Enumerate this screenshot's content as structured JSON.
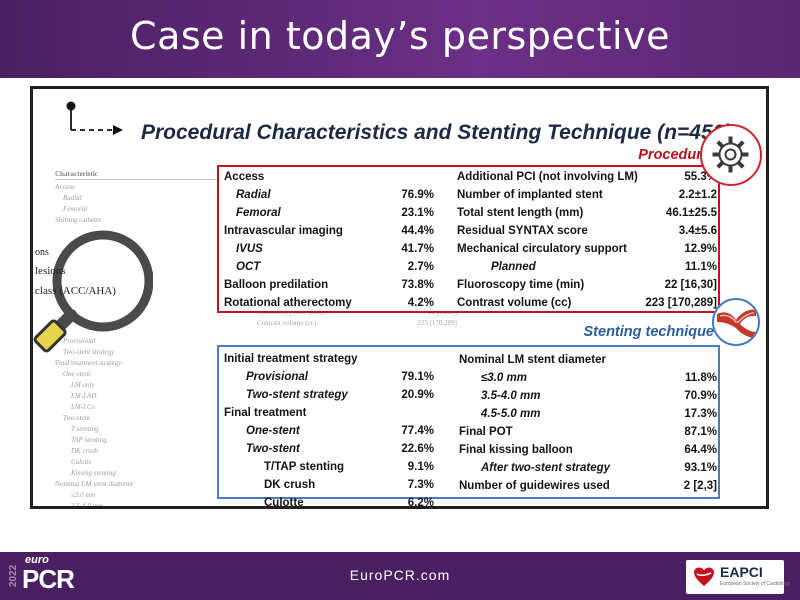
{
  "header": {
    "title": "Case in today’s perspective"
  },
  "heading": "Procedural Characteristics and Stenting Technique (n=450)",
  "labels": {
    "procedural": "Procedural",
    "stenting": "Stenting technique"
  },
  "procedural_left": [
    {
      "label": "Access",
      "value": "",
      "style": "h"
    },
    {
      "label": "Radial",
      "value": "76.9%",
      "style": "i1"
    },
    {
      "label": "Femoral",
      "value": "23.1%",
      "style": "i1"
    },
    {
      "label": "Intravascular imaging",
      "value": "44.4%",
      "style": "h"
    },
    {
      "label": "IVUS",
      "value": "41.7%",
      "style": "i1"
    },
    {
      "label": "OCT",
      "value": "2.7%",
      "style": "i1"
    },
    {
      "label": "Balloon predilation",
      "value": "73.8%",
      "style": "h"
    },
    {
      "label": "Rotational atherectomy",
      "value": "4.2%",
      "style": "h"
    }
  ],
  "procedural_right": [
    {
      "label": "Additional PCI (not involving LM)",
      "value": "55.3%",
      "style": "h"
    },
    {
      "label": "Number of implanted stent",
      "value": "2.2±1.2",
      "style": "h"
    },
    {
      "label": "Total stent length (mm)",
      "value": "46.1±25.5",
      "style": "h"
    },
    {
      "label": "Residual SYNTAX score",
      "value": "3.4±5.6",
      "style": "h"
    },
    {
      "label": "Mechanical circulatory support",
      "value": "12.9%",
      "style": "h"
    },
    {
      "label": "Planned",
      "value": "11.1%",
      "style": "i3"
    },
    {
      "label": "Fluoroscopy time (min)",
      "value": "22 [16,30]",
      "style": "h"
    },
    {
      "label": "Contrast volume (cc)",
      "value": "223 [170,289]",
      "style": "h"
    }
  ],
  "stenting_left": [
    {
      "label": "Initial treatment strategy",
      "value": "",
      "style": "h"
    },
    {
      "label": "Provisional",
      "value": "79.1%",
      "style": "i2"
    },
    {
      "label": "Two-stent strategy",
      "value": "20.9%",
      "style": "i2"
    },
    {
      "label": "Final treatment",
      "value": "",
      "style": "h"
    },
    {
      "label": "One-stent",
      "value": "77.4%",
      "style": "i2"
    },
    {
      "label": "Two-stent",
      "value": "22.6%",
      "style": "i2"
    },
    {
      "label": "T/TAP stenting",
      "value": "9.1%",
      "style": "n1"
    },
    {
      "label": "DK crush",
      "value": "7.3%",
      "style": "n1"
    },
    {
      "label": "Culotte",
      "value": "6.2%",
      "style": "n1"
    }
  ],
  "stenting_right": [
    {
      "label": "Nominal LM stent diameter",
      "value": "",
      "style": "h"
    },
    {
      "label": "≤3.0 mm",
      "value": "11.8%",
      "style": "i2"
    },
    {
      "label": "3.5-4.0 mm",
      "value": "70.9%",
      "style": "i2"
    },
    {
      "label": "4.5-5.0 mm",
      "value": "17.3%",
      "style": "i2"
    },
    {
      "label": "Final POT",
      "value": "87.1%",
      "style": "h"
    },
    {
      "label": "Final kissing balloon",
      "value": "64.4%",
      "style": "h"
    },
    {
      "label": "After two-stent strategy",
      "value": "93.1%",
      "style": "i2"
    },
    {
      "label": "Number of guidewires used",
      "value": "2 [2,3]",
      "style": "h"
    }
  ],
  "zoom_text": [
    "ons",
    "lesions",
    "class (ACC/AHA)"
  ],
  "bg_paper": {
    "header": "Characteristic",
    "rows": [
      {
        "t": "Access",
        "c": ""
      },
      {
        "t": "Radial",
        "c": "ind1"
      },
      {
        "t": "Femoral",
        "c": "ind1"
      },
      {
        "t": "Shifting catheter",
        "c": ""
      },
      {
        "t": "",
        "c": ""
      },
      {
        "t": "",
        "c": ""
      },
      {
        "t": "",
        "c": ""
      },
      {
        "t": "",
        "c": ""
      },
      {
        "t": "",
        "c": ""
      },
      {
        "t": "",
        "c": ""
      },
      {
        "t": "",
        "c": ""
      },
      {
        "t": "",
        "c": ""
      },
      {
        "t": "",
        "c": ""
      },
      {
        "t": "",
        "c": ""
      },
      {
        "t": "Provisional",
        "c": "ind1"
      },
      {
        "t": "Two-stent strategy",
        "c": "ind1"
      },
      {
        "t": "Final treatment strategy",
        "c": ""
      },
      {
        "t": "One-stent",
        "c": "ind1"
      },
      {
        "t": "LM only",
        "c": "ind2"
      },
      {
        "t": "LM-LAD",
        "c": "ind2"
      },
      {
        "t": "LM-LCx",
        "c": "ind2"
      },
      {
        "t": "Two-stent",
        "c": "ind1"
      },
      {
        "t": "T stenting",
        "c": "ind2"
      },
      {
        "t": "TAP stenting",
        "c": "ind2"
      },
      {
        "t": "DK crush",
        "c": "ind2"
      },
      {
        "t": "Culotte",
        "c": "ind2"
      },
      {
        "t": "Kissing stenting",
        "c": "ind2"
      },
      {
        "t": "Nominal LM stent diameter",
        "c": ""
      },
      {
        "t": "≤3.0 mm",
        "c": "ind2"
      },
      {
        "t": "3.5-4.0 mm",
        "c": "ind2"
      },
      {
        "t": "4.5-5.0 mm",
        "c": "ind2"
      },
      {
        "t": "LM stent length (mm)",
        "c": ""
      }
    ],
    "mid_rows": [
      {
        "t": "Fluoroscopy time (min)",
        "v": "22 [16,30]"
      },
      {
        "t": "Contrast volume (cc)",
        "v": "223 [170,289]"
      }
    ]
  },
  "footer": {
    "year": "2022",
    "euro": "euro",
    "pcr": "PCR",
    "site": "EuroPCR.com",
    "eapci": "EAPCI",
    "eapci_sub": "European Society of Cardiology"
  },
  "colors": {
    "header_purple": "#5a2773",
    "procedural_red": "#c1121f",
    "stenting_blue": "#4a7bc1"
  },
  "icons": [
    "pin-arrow-icon",
    "magnifier-icon",
    "gear-icon",
    "artery-bifurcation-icon",
    "eapci-heart-icon"
  ]
}
